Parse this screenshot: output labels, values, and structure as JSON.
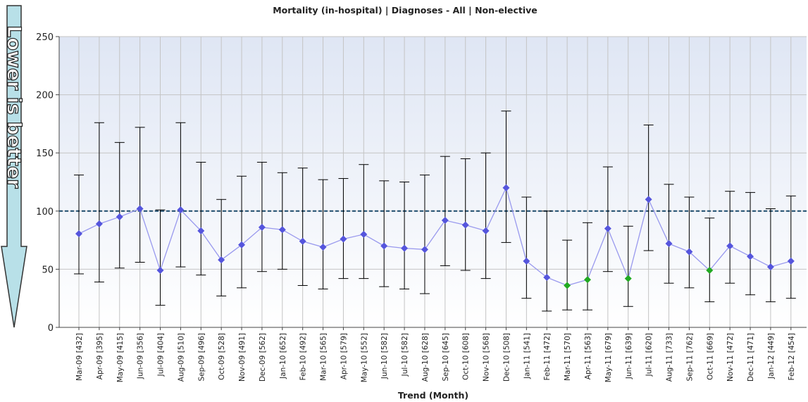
{
  "chart_data": {
    "type": "line_errorbar",
    "title": "Mortality (in-hospital) |  Diagnoses - All | Non-elective",
    "x_label": "Trend (Month)",
    "annotation": "Lower is better",
    "categories": [
      "Mar-09 [432]",
      "Apr-09 [395]",
      "May-09 [415]",
      "Jun-09 [356]",
      "Jul-09 [404]",
      "Aug-09 [510]",
      "Sep-09 [496]",
      "Oct-09 [528]",
      "Nov-09 [491]",
      "Dec-09 [562]",
      "Jan-10 [652]",
      "Feb-10 [492]",
      "Mar-10 [565]",
      "Apr-10 [579]",
      "May-10 [552]",
      "Jun-10 [582]",
      "Jul-10 [582]",
      "Aug-10 [628]",
      "Sep-10 [645]",
      "Oct-10 [608]",
      "Nov-10 [568]",
      "Dec-10 [508]",
      "Jan-11 [541]",
      "Feb-11 [472]",
      "Mar-11 [570]",
      "Apr-11 [563]",
      "May-11 [679]",
      "Jun-11 [639]",
      "Jul-11 [620]",
      "Aug-11 [733]",
      "Sep-11 [762]",
      "Oct-11 [669]",
      "Nov-11 [472]",
      "Dec-11 [471]",
      "Jan-12 [449]",
      "Feb-12 [454]"
    ],
    "values": [
      80.5,
      89,
      95,
      102,
      49,
      101,
      83,
      58,
      71,
      86,
      84,
      74,
      69,
      76,
      80,
      70,
      68,
      67,
      92,
      88,
      83,
      120,
      57,
      43,
      36,
      41,
      85,
      42,
      110,
      72,
      65,
      49,
      70,
      61,
      52,
      57
    ],
    "upper": [
      131,
      176,
      159,
      172,
      101,
      176,
      142,
      110,
      130,
      142,
      133,
      137,
      127,
      128,
      140,
      126,
      125,
      131,
      147,
      145,
      150,
      186,
      112,
      100,
      75,
      90,
      138,
      87,
      174,
      123,
      112,
      94,
      117,
      116,
      102,
      113
    ],
    "lower": [
      46,
      39,
      51,
      56,
      19,
      52,
      45,
      27,
      34,
      48,
      50,
      36,
      33,
      42,
      42,
      35,
      33,
      29,
      53,
      49,
      42,
      73,
      25,
      14,
      15,
      15,
      48,
      18,
      66,
      38,
      34,
      22,
      38,
      28,
      22,
      25
    ],
    "point_colors": [
      "#5555dd",
      "#5555dd",
      "#5555dd",
      "#5555dd",
      "#5555dd",
      "#5555dd",
      "#5555dd",
      "#5555dd",
      "#5555dd",
      "#5555dd",
      "#5555dd",
      "#5555dd",
      "#5555dd",
      "#5555dd",
      "#5555dd",
      "#5555dd",
      "#5555dd",
      "#5555dd",
      "#5555dd",
      "#5555dd",
      "#5555dd",
      "#5555dd",
      "#5555dd",
      "#5555dd",
      "#22aa22",
      "#22aa22",
      "#5555dd",
      "#22aa22",
      "#5555dd",
      "#5555dd",
      "#5555dd",
      "#22aa22",
      "#5555dd",
      "#5555dd",
      "#5555dd",
      "#5555dd"
    ],
    "line_color": "#9999ee",
    "errorbar_color": "#000000",
    "reference_line": 100,
    "reference_color": "#1a4a6a",
    "ylim": [
      0,
      250
    ],
    "yticks": [
      0,
      50,
      100,
      150,
      200,
      250
    ],
    "grid": true
  }
}
